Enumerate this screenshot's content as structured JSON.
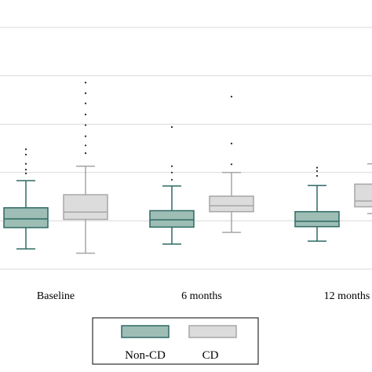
{
  "chart_data": {
    "type": "box",
    "categories": [
      "Baseline",
      "6 months",
      "12 months"
    ],
    "ylim": [
      0,
      5
    ],
    "grid": true,
    "legend_position": "bottom",
    "series": [
      {
        "name": "Non-CD",
        "color": "#9dbdb5",
        "edge_color": "#2e6a64",
        "boxes": [
          {
            "whisker_low": 0.42,
            "q1": 0.86,
            "median": 1.04,
            "q3": 1.27,
            "whisker_high": 1.83,
            "outliers": [
              1.98,
              2.06,
              2.18,
              2.37,
              2.48
            ]
          },
          {
            "whisker_low": 0.52,
            "q1": 0.87,
            "median": 1.02,
            "q3": 1.21,
            "whisker_high": 1.72,
            "outliers": [
              1.85,
              2.0,
              2.13,
              2.94
            ]
          },
          {
            "whisker_low": 0.58,
            "q1": 0.88,
            "median": 0.99,
            "q3": 1.19,
            "whisker_high": 1.73,
            "outliers": [
              1.93,
              2.03,
              2.1
            ]
          }
        ]
      },
      {
        "name": "CD",
        "color": "#dcdcdc",
        "edge_color": "#a6a6a6",
        "boxes": [
          {
            "whisker_low": 0.33,
            "q1": 1.03,
            "median": 1.18,
            "q3": 1.54,
            "whisker_high": 2.13,
            "outliers": [
              2.4,
              2.56,
              2.75,
              2.98,
              3.2,
              3.43,
              3.64,
              3.86
            ]
          },
          {
            "whisker_low": 0.76,
            "q1": 1.19,
            "median": 1.31,
            "q3": 1.51,
            "whisker_high": 2.0,
            "outliers": [
              2.17,
              2.6,
              3.57
            ]
          },
          {
            "whisker_low": 1.15,
            "q1": 1.29,
            "median": 1.41,
            "q3": 1.76,
            "whisker_high": 2.18,
            "outliers": []
          }
        ]
      }
    ]
  }
}
